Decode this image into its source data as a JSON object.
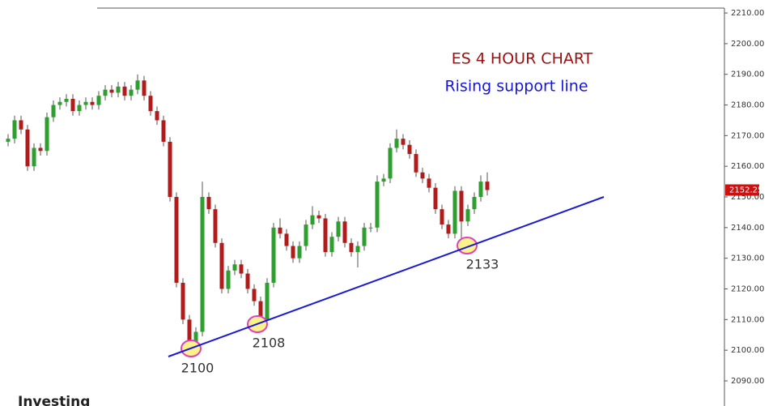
{
  "chart_data": {
    "type": "candlestick",
    "title": "ES 4 HOUR CHART",
    "subtitle": "Rising support line",
    "watermark": "Investing",
    "annotations": [
      "2100",
      "2108",
      "2133"
    ],
    "last_price_label": "2152.25",
    "up_color": "#2e9e2e",
    "down_color": "#b01c1c",
    "open": [
      2168,
      2169,
      2175,
      2172,
      2160,
      2166,
      2165,
      2176,
      2180,
      2181,
      2182,
      2178,
      2180,
      2181,
      2180,
      2183,
      2185,
      2184,
      2186,
      2183,
      2185,
      2188,
      2183,
      2178,
      2175,
      2168,
      2150,
      2122,
      2110,
      2101,
      2106,
      2150,
      2146,
      2135,
      2120,
      2126,
      2128,
      2125,
      2120,
      2116,
      2110,
      2122,
      2140,
      2138,
      2134,
      2130,
      2134,
      2141,
      2144,
      2143,
      2132,
      2137,
      2142,
      2135,
      2132,
      2134,
      2140,
      2140,
      2155,
      2156,
      2166,
      2169,
      2167,
      2164,
      2158,
      2156,
      2153,
      2146,
      2141,
      2138,
      2152,
      2142,
      2146,
      2150,
      2155
    ],
    "high": [
      2170.5,
      2176.5,
      2176.5,
      2173.5,
      2167.5,
      2167.5,
      2177.5,
      2181.5,
      2182.5,
      2183.5,
      2183.5,
      2181.5,
      2182.5,
      2182.5,
      2184.5,
      2186.5,
      2186.5,
      2187.5,
      2187.5,
      2186.5,
      2190,
      2189.5,
      2184.5,
      2179.5,
      2176.5,
      2169.5,
      2151.5,
      2123.5,
      2111.5,
      2107.5,
      2155,
      2151.5,
      2147.5,
      2136.5,
      2127.5,
      2129.5,
      2129.5,
      2126.5,
      2121.5,
      2117.5,
      2123.5,
      2141.5,
      2143,
      2139.5,
      2135.5,
      2135.5,
      2142.5,
      2147,
      2145.5,
      2144.5,
      2138.5,
      2143.5,
      2143.5,
      2136.5,
      2135.5,
      2141.5,
      2141.5,
      2157,
      2157.5,
      2167.5,
      2172,
      2170.5,
      2168.5,
      2165.5,
      2159.5,
      2157.5,
      2154.5,
      2147.5,
      2142.5,
      2153.5,
      2153.5,
      2147.5,
      2151.5,
      2157,
      2158
    ],
    "low": [
      2166.5,
      2167.5,
      2170.5,
      2158.5,
      2158.5,
      2163.5,
      2163.5,
      2174.5,
      2178.5,
      2179.5,
      2176.5,
      2176.5,
      2178.5,
      2178.5,
      2178.5,
      2181.5,
      2182.5,
      2182.5,
      2181.5,
      2181.5,
      2183.5,
      2181.5,
      2176.5,
      2173.5,
      2166.5,
      2148.5,
      2120.5,
      2108.5,
      2099,
      2099.5,
      2104.5,
      2144.5,
      2133.5,
      2118.5,
      2118.5,
      2124.5,
      2123.5,
      2118.5,
      2114.5,
      2108,
      2108.5,
      2120.5,
      2136.5,
      2132.5,
      2128.5,
      2128.5,
      2132.5,
      2139.5,
      2141.5,
      2130.5,
      2130.5,
      2135.5,
      2133.5,
      2130.5,
      2127,
      2132.5,
      2138.5,
      2138.5,
      2153.5,
      2154.5,
      2164.5,
      2165.5,
      2162.5,
      2156.5,
      2154.5,
      2151.5,
      2144.5,
      2139.5,
      2136.5,
      2136.5,
      2133,
      2140.5,
      2144.5,
      2148.5,
      2150.5
    ],
    "close": [
      2169,
      2175,
      2172,
      2160,
      2166,
      2165,
      2176,
      2180,
      2181,
      2182,
      2178,
      2180,
      2181,
      2180,
      2183,
      2185,
      2184,
      2186,
      2183,
      2185,
      2188,
      2183,
      2178,
      2175,
      2168,
      2150,
      2122,
      2110,
      2101,
      2106,
      2150,
      2146,
      2135,
      2120,
      2126,
      2128,
      2125,
      2120,
      2116,
      2110,
      2122,
      2140,
      2138,
      2134,
      2130,
      2134,
      2141,
      2144,
      2143,
      2132,
      2137,
      2142,
      2135,
      2132,
      2134,
      2140,
      2140,
      2155,
      2156,
      2166,
      2169,
      2167,
      2164,
      2158,
      2156,
      2153,
      2146,
      2141,
      2138,
      2152,
      2142,
      2146,
      2150,
      2155,
      2152.25
    ],
    "ylim": [
      2081.8,
      2211.6
    ],
    "yticks": [
      {
        "value": 2090,
        "label": "2090.00"
      },
      {
        "value": 2100,
        "label": "2100.00"
      },
      {
        "value": 2110,
        "label": "2110.00"
      },
      {
        "value": 2120,
        "label": "2120.00"
      },
      {
        "value": 2130,
        "label": "2130.00"
      },
      {
        "value": 2140,
        "label": "2140.00"
      },
      {
        "value": 2150,
        "label": "2150.00"
      },
      {
        "value": 2160,
        "label": "2160.00"
      },
      {
        "value": 2170,
        "label": "2170.00"
      },
      {
        "value": 2180,
        "label": "2180.00"
      },
      {
        "value": 2190,
        "label": "2190.00"
      },
      {
        "value": 2200,
        "label": "2200.00"
      },
      {
        "value": 2210,
        "label": "2210.00"
      }
    ]
  }
}
